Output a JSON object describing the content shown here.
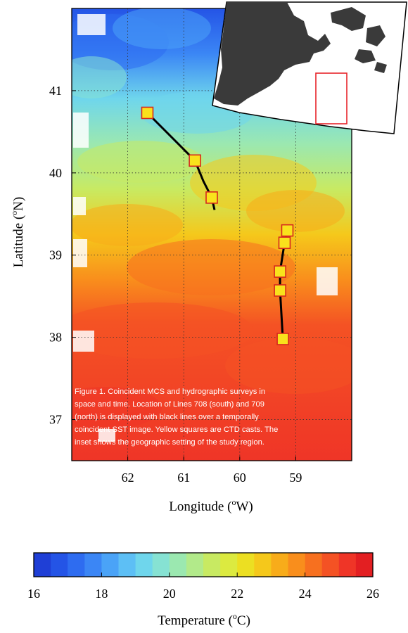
{
  "map": {
    "xlabel_text": "Longitude (",
    "xlabel_unit": "W)",
    "ylabel_text": "Latitude (",
    "ylabel_unit": "N)",
    "degree_mark": "o",
    "lon_ticks": [
      {
        "lon": 62,
        "label": "62"
      },
      {
        "lon": 61,
        "label": "61"
      },
      {
        "lon": 60,
        "label": "60"
      },
      {
        "lon": 59,
        "label": "59"
      }
    ],
    "lat_ticks": [
      {
        "lat": 41,
        "label": "41"
      },
      {
        "lat": 40,
        "label": "40"
      },
      {
        "lat": 39,
        "label": "39"
      },
      {
        "lat": 38,
        "label": "38"
      },
      {
        "lat": 37,
        "label": "37"
      }
    ],
    "lon_range": [
      63.0,
      58.0
    ],
    "lat_range": [
      36.5,
      42.0
    ],
    "caption": [
      "Figure 1. Coincident MCS and hydrographic surveys in",
      "space and time. Location of Lines 708 (south) and 709",
      "(north) is displayed with black lines over a temporally",
      "coincident SST image. Yellow squares are CTD casts. The",
      "inset shows the geographic setting of the study region."
    ],
    "north_line": [
      [
        61.65,
        40.73
      ],
      [
        60.8,
        40.15
      ],
      [
        60.65,
        39.9
      ],
      [
        60.5,
        39.7
      ],
      [
        60.45,
        39.55
      ]
    ],
    "south_line": [
      [
        59.15,
        39.3
      ],
      [
        59.2,
        39.15
      ],
      [
        59.28,
        38.8
      ],
      [
        59.28,
        38.57
      ],
      [
        59.23,
        37.98
      ]
    ],
    "ctd_casts": [
      {
        "lon": 61.65,
        "lat": 40.73
      },
      {
        "lon": 60.8,
        "lat": 40.15
      },
      {
        "lon": 60.5,
        "lat": 39.7
      },
      {
        "lon": 59.15,
        "lat": 39.3
      },
      {
        "lon": 59.2,
        "lat": 39.15
      },
      {
        "lon": 59.28,
        "lat": 38.8
      },
      {
        "lon": 59.28,
        "lat": 38.57
      },
      {
        "lon": 59.23,
        "lat": 37.98
      }
    ]
  },
  "colorbar": {
    "label_text": "Temperature (",
    "label_unit": "C)",
    "degree_mark": "o",
    "min": 16,
    "max": 26,
    "ticks": [
      {
        "value": 16,
        "label": "16"
      },
      {
        "value": 18,
        "label": "18"
      },
      {
        "value": 20,
        "label": "20"
      },
      {
        "value": 22,
        "label": "22"
      },
      {
        "value": 24,
        "label": "24"
      },
      {
        "value": 26,
        "label": "26"
      }
    ],
    "colors": [
      "#1f3fd6",
      "#2454e6",
      "#2e6cf0",
      "#3b86f5",
      "#4aa3f7",
      "#5dbff5",
      "#6fd6ec",
      "#86e2d3",
      "#9be8b0",
      "#b2ea8a",
      "#c8ea62",
      "#dcea40",
      "#ecdf22",
      "#f5c81b",
      "#f8ac1a",
      "#f98e1c",
      "#f7701f",
      "#f45224",
      "#ef3527",
      "#e31f22"
    ]
  },
  "inset": {
    "land_color": "#3a3a3a",
    "box_color": "#e8262c"
  }
}
